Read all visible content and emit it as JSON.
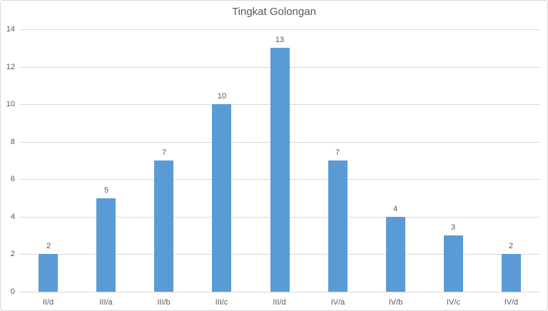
{
  "chart_data": {
    "type": "bar",
    "title": "Tingkat Golongan",
    "categories": [
      "II/d",
      "III/a",
      "III/b",
      "III/c",
      "III/d",
      "IV/a",
      "IV/b",
      "IV/c",
      "IV/d"
    ],
    "values": [
      2,
      5,
      7,
      10,
      13,
      7,
      4,
      3,
      2
    ],
    "xlabel": "",
    "ylabel": "",
    "ylim": [
      0,
      14
    ],
    "ytick_step": 2,
    "ytick_labels": [
      "0",
      "2",
      "4",
      "6",
      "8",
      "10",
      "12",
      "14"
    ],
    "grid": true,
    "legend_position": "none",
    "data_labels": true,
    "colors": {
      "bar": "#5b9bd5",
      "text": "#595959",
      "gridline": "#d9d9d9",
      "border": "#d9d9d9",
      "background": "#ffffff"
    }
  }
}
